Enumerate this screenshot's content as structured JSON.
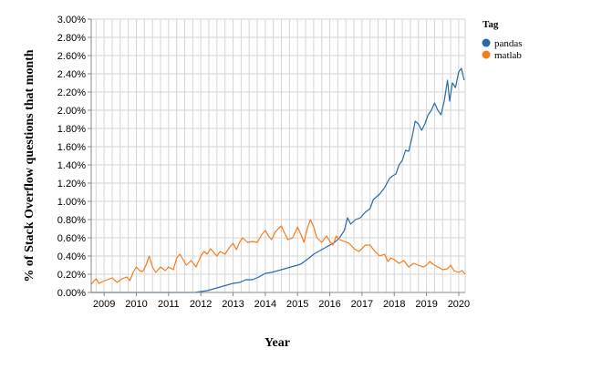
{
  "colors": {
    "pandas": "#2b6aa8",
    "matlab": "#f57c1c",
    "grid": "#d6d6d6",
    "axis": "#888888"
  },
  "chart_data": {
    "type": "line",
    "title": "",
    "xlabel": "Year",
    "ylabel": "% of Stack Overflow questions that month",
    "xlim": [
      2008.6,
      2020.2
    ],
    "ylim": [
      0,
      3.0
    ],
    "y_format": "percent_2dp",
    "grid": true,
    "legend_position": "right",
    "legend_title": "Tag",
    "x_ticks": [
      2009,
      2010,
      2011,
      2012,
      2013,
      2014,
      2015,
      2016,
      2017,
      2018,
      2019,
      2020
    ],
    "y_ticks": [
      0,
      0.2,
      0.4,
      0.6,
      0.8,
      1.0,
      1.2,
      1.4,
      1.6,
      1.8,
      2.0,
      2.2,
      2.4,
      2.6,
      2.8,
      3.0
    ],
    "y_tick_labels": [
      "0.00%",
      "0.20%",
      "0.40%",
      "0.60%",
      "0.80%",
      "1.00%",
      "1.20%",
      "1.40%",
      "1.60%",
      "1.80%",
      "2.00%",
      "2.20%",
      "2.40%",
      "2.60%",
      "2.80%",
      "3.00%"
    ],
    "series": [
      {
        "name": "pandas",
        "color": "#2b6aa8",
        "points": [
          [
            2008.6,
            0
          ],
          [
            2010.0,
            0
          ],
          [
            2011.0,
            0
          ],
          [
            2011.8,
            0
          ],
          [
            2012.0,
            0.01
          ],
          [
            2012.2,
            0.02
          ],
          [
            2012.5,
            0.05
          ],
          [
            2012.8,
            0.08
          ],
          [
            2013.0,
            0.1
          ],
          [
            2013.2,
            0.11
          ],
          [
            2013.4,
            0.14
          ],
          [
            2013.6,
            0.14
          ],
          [
            2013.8,
            0.17
          ],
          [
            2014.0,
            0.21
          ],
          [
            2014.2,
            0.22
          ],
          [
            2014.4,
            0.24
          ],
          [
            2014.6,
            0.26
          ],
          [
            2014.8,
            0.28
          ],
          [
            2015.0,
            0.3
          ],
          [
            2015.1,
            0.31
          ],
          [
            2015.25,
            0.35
          ],
          [
            2015.4,
            0.39
          ],
          [
            2015.5,
            0.42
          ],
          [
            2015.7,
            0.46
          ],
          [
            2015.9,
            0.5
          ],
          [
            2016.0,
            0.52
          ],
          [
            2016.15,
            0.55
          ],
          [
            2016.3,
            0.6
          ],
          [
            2016.45,
            0.68
          ],
          [
            2016.55,
            0.82
          ],
          [
            2016.65,
            0.75
          ],
          [
            2016.8,
            0.8
          ],
          [
            2016.95,
            0.82
          ],
          [
            2017.0,
            0.84
          ],
          [
            2017.1,
            0.88
          ],
          [
            2017.25,
            0.92
          ],
          [
            2017.35,
            1.02
          ],
          [
            2017.45,
            1.05
          ],
          [
            2017.55,
            1.08
          ],
          [
            2017.7,
            1.15
          ],
          [
            2017.85,
            1.25
          ],
          [
            2017.95,
            1.28
          ],
          [
            2018.05,
            1.3
          ],
          [
            2018.15,
            1.4
          ],
          [
            2018.25,
            1.45
          ],
          [
            2018.35,
            1.56
          ],
          [
            2018.45,
            1.55
          ],
          [
            2018.55,
            1.7
          ],
          [
            2018.65,
            1.88
          ],
          [
            2018.75,
            1.85
          ],
          [
            2018.85,
            1.78
          ],
          [
            2018.95,
            1.85
          ],
          [
            2019.05,
            1.95
          ],
          [
            2019.15,
            2.0
          ],
          [
            2019.25,
            2.08
          ],
          [
            2019.35,
            2.0
          ],
          [
            2019.45,
            1.95
          ],
          [
            2019.55,
            2.1
          ],
          [
            2019.65,
            2.33
          ],
          [
            2019.72,
            2.1
          ],
          [
            2019.8,
            2.3
          ],
          [
            2019.9,
            2.25
          ],
          [
            2020.0,
            2.42
          ],
          [
            2020.08,
            2.46
          ],
          [
            2020.17,
            2.33
          ]
        ]
      },
      {
        "name": "matlab",
        "color": "#f57c1c",
        "points": [
          [
            2008.6,
            0.09
          ],
          [
            2008.67,
            0.12
          ],
          [
            2008.75,
            0.15
          ],
          [
            2008.85,
            0.1
          ],
          [
            2008.95,
            0.12
          ],
          [
            2009.1,
            0.14
          ],
          [
            2009.25,
            0.16
          ],
          [
            2009.4,
            0.11
          ],
          [
            2009.55,
            0.15
          ],
          [
            2009.7,
            0.17
          ],
          [
            2009.8,
            0.13
          ],
          [
            2009.9,
            0.22
          ],
          [
            2010.0,
            0.28
          ],
          [
            2010.1,
            0.24
          ],
          [
            2010.2,
            0.23
          ],
          [
            2010.3,
            0.3
          ],
          [
            2010.4,
            0.4
          ],
          [
            2010.5,
            0.28
          ],
          [
            2010.6,
            0.22
          ],
          [
            2010.75,
            0.28
          ],
          [
            2010.9,
            0.24
          ],
          [
            2011.0,
            0.28
          ],
          [
            2011.15,
            0.25
          ],
          [
            2011.25,
            0.38
          ],
          [
            2011.35,
            0.42
          ],
          [
            2011.45,
            0.36
          ],
          [
            2011.55,
            0.3
          ],
          [
            2011.7,
            0.35
          ],
          [
            2011.85,
            0.28
          ],
          [
            2012.0,
            0.4
          ],
          [
            2012.1,
            0.45
          ],
          [
            2012.2,
            0.42
          ],
          [
            2012.3,
            0.48
          ],
          [
            2012.4,
            0.44
          ],
          [
            2012.5,
            0.4
          ],
          [
            2012.6,
            0.45
          ],
          [
            2012.75,
            0.42
          ],
          [
            2012.9,
            0.5
          ],
          [
            2013.0,
            0.54
          ],
          [
            2013.1,
            0.47
          ],
          [
            2013.2,
            0.55
          ],
          [
            2013.3,
            0.6
          ],
          [
            2013.45,
            0.55
          ],
          [
            2013.6,
            0.56
          ],
          [
            2013.75,
            0.55
          ],
          [
            2013.9,
            0.64
          ],
          [
            2014.0,
            0.68
          ],
          [
            2014.1,
            0.62
          ],
          [
            2014.2,
            0.58
          ],
          [
            2014.3,
            0.66
          ],
          [
            2014.4,
            0.7
          ],
          [
            2014.5,
            0.73
          ],
          [
            2014.6,
            0.65
          ],
          [
            2014.7,
            0.58
          ],
          [
            2014.85,
            0.6
          ],
          [
            2015.0,
            0.72
          ],
          [
            2015.1,
            0.64
          ],
          [
            2015.2,
            0.55
          ],
          [
            2015.3,
            0.7
          ],
          [
            2015.4,
            0.8
          ],
          [
            2015.5,
            0.72
          ],
          [
            2015.6,
            0.6
          ],
          [
            2015.75,
            0.55
          ],
          [
            2015.9,
            0.62
          ],
          [
            2016.0,
            0.56
          ],
          [
            2016.1,
            0.52
          ],
          [
            2016.2,
            0.62
          ],
          [
            2016.3,
            0.58
          ],
          [
            2016.45,
            0.56
          ],
          [
            2016.6,
            0.54
          ],
          [
            2016.75,
            0.48
          ],
          [
            2016.9,
            0.45
          ],
          [
            2017.0,
            0.48
          ],
          [
            2017.1,
            0.52
          ],
          [
            2017.25,
            0.52
          ],
          [
            2017.4,
            0.45
          ],
          [
            2017.55,
            0.4
          ],
          [
            2017.7,
            0.42
          ],
          [
            2017.8,
            0.34
          ],
          [
            2017.9,
            0.38
          ],
          [
            2018.0,
            0.36
          ],
          [
            2018.15,
            0.32
          ],
          [
            2018.3,
            0.35
          ],
          [
            2018.45,
            0.28
          ],
          [
            2018.6,
            0.32
          ],
          [
            2018.75,
            0.3
          ],
          [
            2018.9,
            0.28
          ],
          [
            2019.0,
            0.3
          ],
          [
            2019.1,
            0.34
          ],
          [
            2019.2,
            0.31
          ],
          [
            2019.35,
            0.28
          ],
          [
            2019.5,
            0.25
          ],
          [
            2019.65,
            0.26
          ],
          [
            2019.75,
            0.3
          ],
          [
            2019.85,
            0.24
          ],
          [
            2020.0,
            0.22
          ],
          [
            2020.1,
            0.24
          ],
          [
            2020.2,
            0.2
          ]
        ]
      }
    ]
  }
}
